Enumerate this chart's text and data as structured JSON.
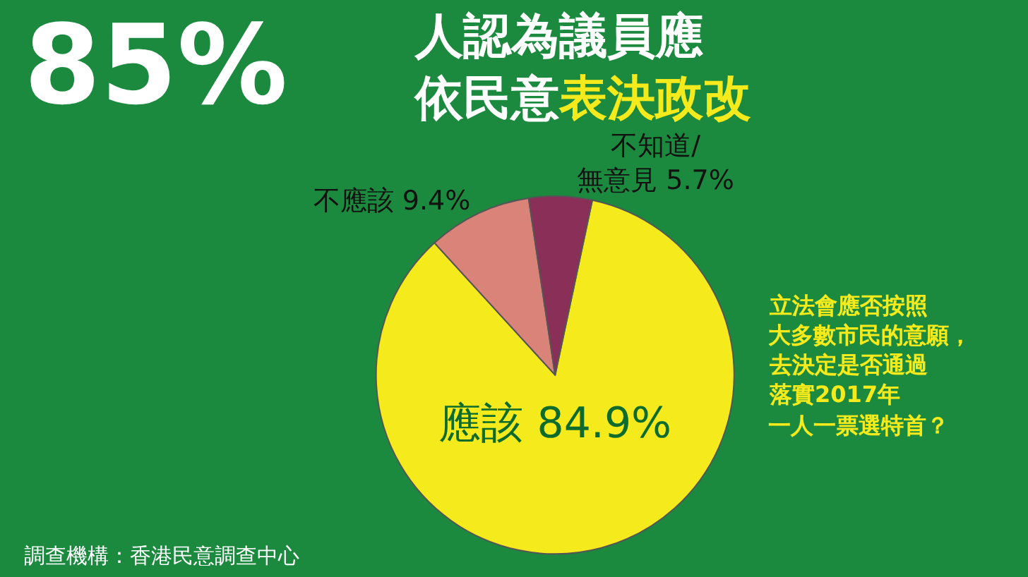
{
  "chart_data": {
    "type": "pie",
    "title": "85%",
    "subtitle": "人認為議員應依民意表決政改",
    "categories": [
      "應該",
      "不應該",
      "不知道/無意見"
    ],
    "values": [
      84.9,
      9.4,
      5.7
    ],
    "colors": [
      "#f4ea1c",
      "#d98379",
      "#8a2f58"
    ],
    "value_labels": [
      "84.9%",
      "9.4%",
      "5.7%"
    ],
    "legend": false,
    "annotations": [
      "立法會應否按照",
      "大多數市民的意願，",
      "去決定是否通過",
      "落實2017年",
      "一人一票選特首？",
      "調查機構：香港民意調查中心"
    ]
  }
}
